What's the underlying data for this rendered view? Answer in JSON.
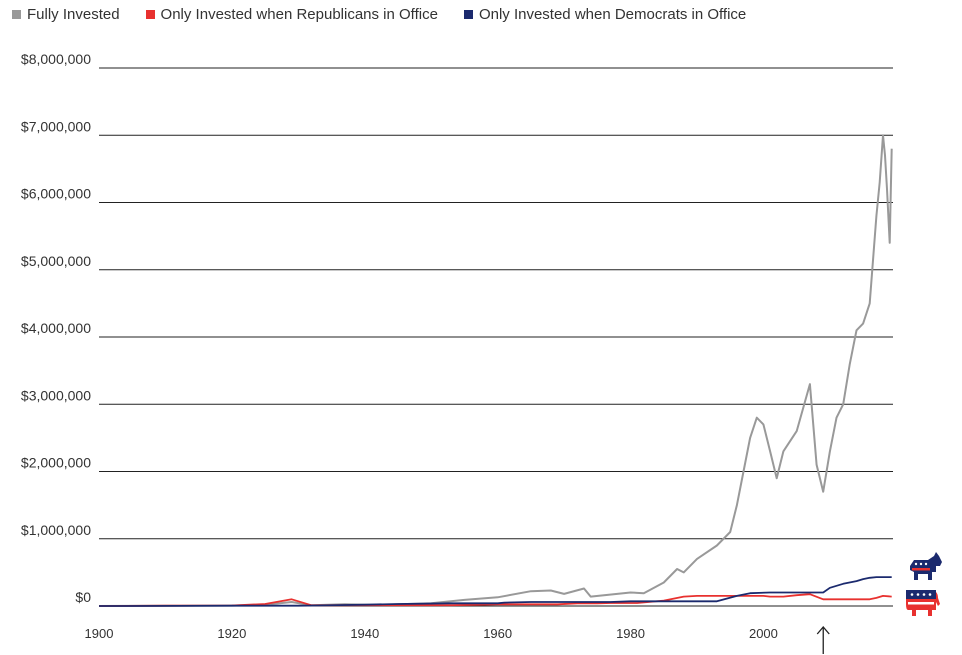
{
  "chart_data": {
    "type": "line",
    "title": "",
    "xlabel": "",
    "ylabel": "",
    "xlim": [
      1900,
      2018
    ],
    "ylim": [
      0,
      8000000
    ],
    "grid": "horizontal",
    "legend_placement": "top-left",
    "y_ticks": [
      {
        "value": 0,
        "label": "$0"
      },
      {
        "value": 1000000,
        "label": "$1,000,000"
      },
      {
        "value": 2000000,
        "label": "$2,000,000"
      },
      {
        "value": 3000000,
        "label": "$3,000,000"
      },
      {
        "value": 4000000,
        "label": "$4,000,000"
      },
      {
        "value": 5000000,
        "label": "$5,000,000"
      },
      {
        "value": 6000000,
        "label": "$6,000,000"
      },
      {
        "value": 7000000,
        "label": "$7,000,000"
      },
      {
        "value": 8000000,
        "label": "$8,000,000"
      }
    ],
    "x_ticks": [
      {
        "value": 1900,
        "label": "1900"
      },
      {
        "value": 1920,
        "label": "1920"
      },
      {
        "value": 1940,
        "label": "1940"
      },
      {
        "value": 1960,
        "label": "1960"
      },
      {
        "value": 1980,
        "label": "1980"
      },
      {
        "value": 2000,
        "label": "2000"
      }
    ],
    "annotations": [
      {
        "type": "arrow-up",
        "x": 2009
      }
    ],
    "series": [
      {
        "name": "Fully Invested",
        "color": "#999999",
        "points": [
          [
            1900,
            0
          ],
          [
            1910,
            3000
          ],
          [
            1920,
            6000
          ],
          [
            1925,
            20000
          ],
          [
            1929,
            60000
          ],
          [
            1932,
            10000
          ],
          [
            1937,
            25000
          ],
          [
            1942,
            15000
          ],
          [
            1950,
            40000
          ],
          [
            1955,
            90000
          ],
          [
            1960,
            130000
          ],
          [
            1965,
            220000
          ],
          [
            1968,
            230000
          ],
          [
            1970,
            180000
          ],
          [
            1973,
            260000
          ],
          [
            1974,
            140000
          ],
          [
            1980,
            200000
          ],
          [
            1982,
            190000
          ],
          [
            1985,
            350000
          ],
          [
            1987,
            550000
          ],
          [
            1988,
            500000
          ],
          [
            1990,
            700000
          ],
          [
            1993,
            900000
          ],
          [
            1995,
            1100000
          ],
          [
            1996,
            1500000
          ],
          [
            1997,
            2000000
          ],
          [
            1998,
            2500000
          ],
          [
            1999,
            2800000
          ],
          [
            2000,
            2700000
          ],
          [
            2001,
            2300000
          ],
          [
            2002,
            1900000
          ],
          [
            2003,
            2300000
          ],
          [
            2005,
            2600000
          ],
          [
            2007,
            3300000
          ],
          [
            2008,
            2100000
          ],
          [
            2009,
            1700000
          ],
          [
            2010,
            2300000
          ],
          [
            2011,
            2800000
          ],
          [
            2012,
            3000000
          ],
          [
            2013,
            3600000
          ],
          [
            2014,
            4100000
          ],
          [
            2015,
            4200000
          ],
          [
            2016,
            4500000
          ],
          [
            2017,
            5800000
          ],
          [
            2017.5,
            6300000
          ],
          [
            2018,
            7000000
          ],
          [
            2018.3,
            6700000
          ],
          [
            2018.6,
            6200000
          ],
          [
            2019,
            5400000
          ],
          [
            2019.3,
            6800000
          ]
        ]
      },
      {
        "name": "Only Invested when Republicans in Office",
        "color": "#e8312f",
        "points": [
          [
            1900,
            0
          ],
          [
            1910,
            4000
          ],
          [
            1920,
            7000
          ],
          [
            1925,
            30000
          ],
          [
            1929,
            100000
          ],
          [
            1931,
            40000
          ],
          [
            1932,
            10000
          ],
          [
            1940,
            12000
          ],
          [
            1953,
            12000
          ],
          [
            1960,
            25000
          ],
          [
            1965,
            25000
          ],
          [
            1969,
            25000
          ],
          [
            1972,
            40000
          ],
          [
            1975,
            40000
          ],
          [
            1977,
            45000
          ],
          [
            1981,
            45000
          ],
          [
            1985,
            80000
          ],
          [
            1988,
            140000
          ],
          [
            1990,
            150000
          ],
          [
            1992,
            150000
          ],
          [
            2000,
            150000
          ],
          [
            2001,
            140000
          ],
          [
            2003,
            140000
          ],
          [
            2005,
            160000
          ],
          [
            2007,
            175000
          ],
          [
            2009,
            100000
          ],
          [
            2016,
            100000
          ],
          [
            2017,
            120000
          ],
          [
            2018,
            150000
          ],
          [
            2019.3,
            140000
          ]
        ]
      },
      {
        "name": "Only Invested when Democrats in Office",
        "color": "#1b2a6e",
        "points": [
          [
            1900,
            0
          ],
          [
            1912,
            2000
          ],
          [
            1920,
            5000
          ],
          [
            1930,
            5000
          ],
          [
            1933,
            8000
          ],
          [
            1940,
            20000
          ],
          [
            1945,
            30000
          ],
          [
            1953,
            40000
          ],
          [
            1960,
            40000
          ],
          [
            1961,
            50000
          ],
          [
            1965,
            60000
          ],
          [
            1969,
            60000
          ],
          [
            1977,
            60000
          ],
          [
            1980,
            70000
          ],
          [
            1993,
            70000
          ],
          [
            1996,
            150000
          ],
          [
            1998,
            190000
          ],
          [
            2001,
            200000
          ],
          [
            2008,
            200000
          ],
          [
            2009,
            200000
          ],
          [
            2010,
            270000
          ],
          [
            2012,
            330000
          ],
          [
            2014,
            370000
          ],
          [
            2015,
            400000
          ],
          [
            2016,
            420000
          ],
          [
            2017,
            430000
          ],
          [
            2019.3,
            430000
          ]
        ]
      }
    ]
  },
  "icons": {
    "democrat": {
      "name": "donkey-icon",
      "colors": [
        "#1b2a6e",
        "#e8312f"
      ]
    },
    "republican": {
      "name": "elephant-icon",
      "colors": [
        "#e8312f",
        "#1b2a6e"
      ]
    }
  }
}
